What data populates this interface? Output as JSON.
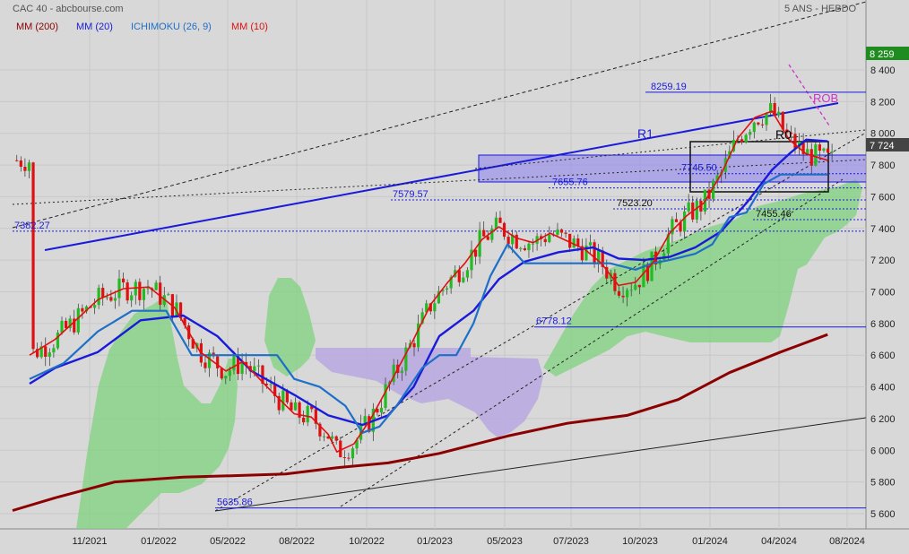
{
  "header": {
    "title": "CAC 40 - abcbourse.com",
    "period": "5 ANS - HEBDO"
  },
  "legend": [
    {
      "label": "MM (200)",
      "color": "#8b0000"
    },
    {
      "label": "MM (20)",
      "color": "#1a1adb"
    },
    {
      "label": "ICHIMOKU (26, 9)",
      "color": "#1e6fc8"
    },
    {
      "label": "MM (10)",
      "color": "#e01010"
    }
  ],
  "chart_data": {
    "type": "line",
    "title": "CAC 40 - abcbourse.com",
    "subtitle": "5 ANS - HEBDO",
    "xlabel": "",
    "ylabel": "",
    "ylim": [
      5560,
      8480
    ],
    "grid": true,
    "legend_position": "top-left",
    "x_ticks": [
      "11/2021",
      "01/2022",
      "05/2022",
      "08/2022",
      "10/2022",
      "01/2023",
      "05/2023",
      "07/2023",
      "10/2023",
      "01/2024",
      "04/2024",
      "08/2024"
    ],
    "y_ticks": [
      "5 600",
      "5 800",
      "6 000",
      "6 200",
      "6 400",
      "6 600",
      "6 800",
      "7 000",
      "7 200",
      "7 400",
      "7 600",
      "7 800",
      "8 000",
      "8 200",
      "8 400"
    ],
    "last_value": "7 724",
    "high_value": "8 259",
    "levels": [
      {
        "label": "8259.19",
        "value": 8259.19,
        "color": "#1a1adb"
      },
      {
        "label": "7745.50",
        "value": 7745.5,
        "color": "#1a1adb"
      },
      {
        "label": "7655.76",
        "value": 7655.76,
        "color": "#1a1adb"
      },
      {
        "label": "7579.57",
        "value": 7579.57,
        "color": "#1a1adb"
      },
      {
        "label": "7523.20",
        "value": 7523.2,
        "color": "#1a1adb"
      },
      {
        "label": "7455.46",
        "value": 7455.46,
        "color": "#1a1adb"
      },
      {
        "label": "7382.27",
        "value": 7382.27,
        "color": "#1a1adb"
      },
      {
        "label": "6778.12",
        "value": 6778.12,
        "color": "#1a1adb"
      },
      {
        "label": "5635.86",
        "value": 5635.86,
        "color": "#1a1adb"
      }
    ],
    "annotations": [
      {
        "label": "R1",
        "color": "#1a1adb"
      },
      {
        "label": "R0",
        "color": "#000000"
      },
      {
        "label": "ROB",
        "color": "#cc33cc"
      }
    ],
    "series": [
      {
        "name": "MM (200)",
        "color": "#8b0000",
        "points": [
          [
            0,
            5620
          ],
          [
            0.05,
            5700
          ],
          [
            0.12,
            5800
          ],
          [
            0.2,
            5830
          ],
          [
            0.26,
            5840
          ],
          [
            0.32,
            5850
          ],
          [
            0.38,
            5890
          ],
          [
            0.44,
            5920
          ],
          [
            0.5,
            5980
          ],
          [
            0.58,
            6090
          ],
          [
            0.65,
            6170
          ],
          [
            0.72,
            6220
          ],
          [
            0.78,
            6320
          ],
          [
            0.84,
            6490
          ],
          [
            0.9,
            6620
          ],
          [
            0.955,
            6730
          ]
        ]
      },
      {
        "name": "MM (20)",
        "color": "#1a1adb",
        "points": [
          [
            0.02,
            6420
          ],
          [
            0.05,
            6520
          ],
          [
            0.1,
            6620
          ],
          [
            0.15,
            6820
          ],
          [
            0.2,
            6850
          ],
          [
            0.24,
            6720
          ],
          [
            0.28,
            6500
          ],
          [
            0.33,
            6350
          ],
          [
            0.37,
            6220
          ],
          [
            0.41,
            6160
          ],
          [
            0.44,
            6220
          ],
          [
            0.47,
            6400
          ],
          [
            0.5,
            6720
          ],
          [
            0.54,
            6880
          ],
          [
            0.57,
            7080
          ],
          [
            0.6,
            7190
          ],
          [
            0.64,
            7250
          ],
          [
            0.68,
            7280
          ],
          [
            0.71,
            7210
          ],
          [
            0.74,
            7200
          ],
          [
            0.77,
            7220
          ],
          [
            0.8,
            7280
          ],
          [
            0.83,
            7380
          ],
          [
            0.86,
            7560
          ],
          [
            0.89,
            7770
          ],
          [
            0.91,
            7870
          ],
          [
            0.93,
            7960
          ],
          [
            0.955,
            7950
          ]
        ]
      },
      {
        "name": "ICHIMOKU (26, 9)",
        "color": "#1e6fc8",
        "points": [
          [
            0.02,
            6450
          ],
          [
            0.06,
            6550
          ],
          [
            0.1,
            6750
          ],
          [
            0.14,
            6880
          ],
          [
            0.18,
            6880
          ],
          [
            0.21,
            6600
          ],
          [
            0.24,
            6600
          ],
          [
            0.28,
            6600
          ],
          [
            0.31,
            6600
          ],
          [
            0.33,
            6450
          ],
          [
            0.36,
            6400
          ],
          [
            0.39,
            6280
          ],
          [
            0.41,
            6110
          ],
          [
            0.43,
            6150
          ],
          [
            0.45,
            6280
          ],
          [
            0.48,
            6520
          ],
          [
            0.5,
            6600
          ],
          [
            0.52,
            6600
          ],
          [
            0.54,
            6800
          ],
          [
            0.56,
            7100
          ],
          [
            0.58,
            7300
          ],
          [
            0.6,
            7180
          ],
          [
            0.62,
            7180
          ],
          [
            0.64,
            7180
          ],
          [
            0.66,
            7180
          ],
          [
            0.68,
            7180
          ],
          [
            0.7,
            7180
          ],
          [
            0.73,
            7140
          ],
          [
            0.75,
            7180
          ],
          [
            0.77,
            7200
          ],
          [
            0.8,
            7240
          ],
          [
            0.82,
            7300
          ],
          [
            0.84,
            7470
          ],
          [
            0.86,
            7500
          ],
          [
            0.88,
            7680
          ],
          [
            0.9,
            7740
          ],
          [
            0.93,
            7740
          ],
          [
            0.955,
            7740
          ]
        ]
      },
      {
        "name": "MM (10)",
        "color": "#e01010",
        "points": [
          [
            0.02,
            6600
          ],
          [
            0.05,
            6700
          ],
          [
            0.08,
            6850
          ],
          [
            0.1,
            6950
          ],
          [
            0.13,
            7020
          ],
          [
            0.16,
            7030
          ],
          [
            0.19,
            6900
          ],
          [
            0.22,
            6620
          ],
          [
            0.25,
            6500
          ],
          [
            0.27,
            6560
          ],
          [
            0.3,
            6390
          ],
          [
            0.33,
            6230
          ],
          [
            0.35,
            6210
          ],
          [
            0.37,
            6100
          ],
          [
            0.38,
            5990
          ],
          [
            0.4,
            6040
          ],
          [
            0.42,
            6200
          ],
          [
            0.44,
            6400
          ],
          [
            0.47,
            6700
          ],
          [
            0.49,
            6920
          ],
          [
            0.51,
            7060
          ],
          [
            0.53,
            7180
          ],
          [
            0.55,
            7330
          ],
          [
            0.57,
            7410
          ],
          [
            0.59,
            7340
          ],
          [
            0.61,
            7310
          ],
          [
            0.63,
            7370
          ],
          [
            0.65,
            7320
          ],
          [
            0.67,
            7270
          ],
          [
            0.69,
            7180
          ],
          [
            0.71,
            7040
          ],
          [
            0.73,
            7060
          ],
          [
            0.75,
            7180
          ],
          [
            0.77,
            7370
          ],
          [
            0.79,
            7480
          ],
          [
            0.81,
            7560
          ],
          [
            0.83,
            7740
          ],
          [
            0.85,
            7970
          ],
          [
            0.87,
            8100
          ],
          [
            0.89,
            8140
          ],
          [
            0.91,
            7960
          ],
          [
            0.93,
            7870
          ],
          [
            0.955,
            7830
          ]
        ]
      }
    ]
  }
}
